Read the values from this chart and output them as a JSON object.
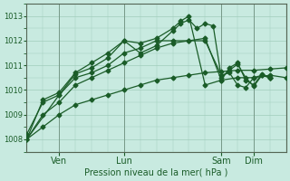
{
  "title": "",
  "xlabel": "Pression niveau de la mer( hPa )",
  "ylabel": "",
  "bg_color": "#c8eae0",
  "grid_color": "#a0ccbb",
  "line_color": "#1a5c28",
  "marker": "D",
  "markersize": 2.5,
  "linewidth": 0.9,
  "ylim": [
    1007.5,
    1013.5
  ],
  "yticks": [
    1008,
    1009,
    1010,
    1011,
    1012,
    1013
  ],
  "xlim": [
    0,
    192
  ],
  "xtick_positions": [
    24,
    72,
    144,
    168
  ],
  "xtick_labels": [
    "Ven",
    "Lun",
    "Sam",
    "Dim"
  ],
  "vline_positions": [
    24,
    72,
    144,
    168
  ],
  "series": [
    {
      "x": [
        0,
        12,
        24,
        36,
        48,
        60,
        72,
        84,
        96,
        108,
        120,
        132,
        144,
        156,
        168,
        180,
        192
      ],
      "y": [
        1008.0,
        1008.5,
        1009.0,
        1009.4,
        1009.6,
        1009.8,
        1010.0,
        1010.2,
        1010.4,
        1010.5,
        1010.6,
        1010.7,
        1010.75,
        1010.8,
        1010.8,
        1010.85,
        1010.9
      ]
    },
    {
      "x": [
        0,
        12,
        24,
        36,
        48,
        60,
        72,
        84,
        96,
        108,
        120,
        132,
        144,
        156,
        168,
        180,
        192
      ],
      "y": [
        1008.0,
        1009.0,
        1009.5,
        1010.2,
        1010.5,
        1010.8,
        1011.1,
        1011.4,
        1011.7,
        1011.9,
        1012.0,
        1012.1,
        1010.4,
        1010.5,
        1010.5,
        1010.6,
        1010.5
      ]
    },
    {
      "x": [
        0,
        12,
        24,
        36,
        48,
        60,
        72,
        84,
        96,
        108,
        120,
        132,
        144,
        150,
        156,
        162,
        168,
        174,
        180
      ],
      "y": [
        1008.2,
        1009.5,
        1009.8,
        1010.5,
        1010.7,
        1011.0,
        1011.5,
        1011.7,
        1012.0,
        1012.0,
        1012.0,
        1012.0,
        1010.6,
        1010.7,
        1010.2,
        1010.1,
        1010.5,
        1010.6,
        1010.5
      ]
    },
    {
      "x": [
        0,
        12,
        24,
        36,
        48,
        60,
        72,
        84,
        96,
        108,
        114,
        120,
        132,
        144,
        150,
        156,
        162,
        168,
        174,
        180
      ],
      "y": [
        1008.0,
        1009.6,
        1009.9,
        1010.7,
        1011.1,
        1011.5,
        1012.0,
        1011.9,
        1012.1,
        1012.5,
        1012.8,
        1013.0,
        1010.2,
        1010.4,
        1010.9,
        1011.1,
        1010.4,
        1010.2,
        1010.65,
        1010.5
      ]
    },
    {
      "x": [
        0,
        24,
        36,
        48,
        60,
        72,
        84,
        96,
        108,
        114,
        120,
        126,
        132,
        138,
        144,
        150,
        156,
        162,
        168,
        174,
        180
      ],
      "y": [
        1008.0,
        1009.8,
        1010.65,
        1010.9,
        1011.3,
        1012.0,
        1011.5,
        1011.8,
        1012.4,
        1012.7,
        1012.85,
        1012.5,
        1012.7,
        1012.6,
        1010.5,
        1010.8,
        1011.05,
        1010.5,
        1010.15,
        1010.6,
        1010.5
      ]
    }
  ]
}
